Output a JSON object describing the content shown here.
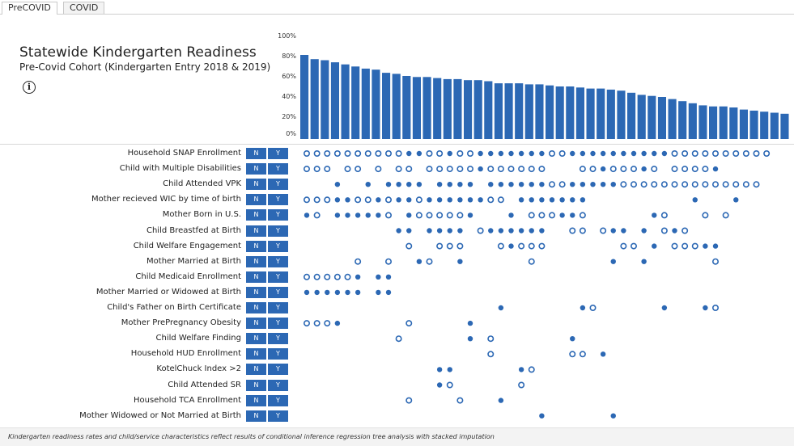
{
  "tabs": [
    {
      "label": "PreCOVID",
      "active": true
    },
    {
      "label": "COVID",
      "active": false
    }
  ],
  "header": {
    "title": "Statewide Kindergarten Readiness",
    "subtitle": "Pre-Covid Cohort (Kindergarten Entry 2018 & 2019)"
  },
  "info_icon": "info-icon",
  "button_labels": {
    "n": "N",
    "y": "Y"
  },
  "colors": {
    "bar": "#2c68b4",
    "dot": "#2c68b4",
    "button": "#2c68b4"
  },
  "chart_data": {
    "type": "bar",
    "ylim": [
      0,
      100
    ],
    "yticks": [
      "100%",
      "80%",
      "60%",
      "40%",
      "20%",
      "0%"
    ],
    "values": [
      80,
      76,
      75,
      73,
      71,
      69,
      67,
      66,
      63,
      62,
      60,
      59,
      59,
      58,
      57,
      57,
      56,
      56,
      55,
      53,
      53,
      53,
      52,
      52,
      51,
      50,
      50,
      49,
      48,
      48,
      47,
      46,
      44,
      42,
      41,
      40,
      38,
      36,
      34,
      32,
      31,
      31,
      30,
      28,
      27,
      26,
      25,
      24
    ],
    "grid": false,
    "legend": "none"
  },
  "rows": [
    {
      "label": "Household SNAP Enrollment",
      "dots": "oooooooooo●●oo●oo●●●●●●●oo●●●●●●●●●●oooooooooo"
    },
    {
      "label": "Child with Multiple Disabilities",
      "dots": "ooo_oo_o_oo_ooooo●oooooo___oo●ooo●o_oooo●"
    },
    {
      "label": "Child Attended VPK",
      "dots": "___●__●_●●●●_●●●●_●●●●●●oo●●●●●oooooooooooooo"
    },
    {
      "label": "Mother recieved WIC by time of birth",
      "dots": "ooo●●oo●o●●o●●●●●●oo_●●●●●●●__________●___●"
    },
    {
      "label": "Mother Born in U.S.",
      "dots": "●o_●●●●●o_●ooooo●___●_ooo●●o______●o___o_o"
    },
    {
      "label": "Child Breastfed at Birth",
      "dots": "_________●●_●●●●_o●●●●●●__oo_o●●_●_o●o"
    },
    {
      "label": "Child Welfare Engagement",
      "dots": "__________o__ooo___o●ooo_______oo_●_ooo●●"
    },
    {
      "label": "Mother Married at Birth",
      "dots": "_____o__o__●o__●______o_______●__●______o"
    },
    {
      "label": "Child Medicaid Enrollment",
      "dots": "ooooo●_●●"
    },
    {
      "label": "Mother Married or Widowed at Birth",
      "dots": "●●●●●●_●●"
    },
    {
      "label": "Child's Father on Birth Certificate",
      "dots": "___________________●_______●o______●___●o"
    },
    {
      "label": "Mother PrePregnancy Obesity",
      "dots": "ooo●______o_____●"
    },
    {
      "label": "Child Welfare Finding",
      "dots": "_________o______●_o_______●"
    },
    {
      "label": "Household HUD Enrollment",
      "dots": "__________________o_______oo_●"
    },
    {
      "label": "KotelChuck Index >2",
      "dots": "_____________●●______●o"
    },
    {
      "label": "Child Attended SR",
      "dots": "_____________●o______o"
    },
    {
      "label": "Household TCA Enrollment",
      "dots": "__________o____o___●"
    },
    {
      "label": "Mother Widowed or Not Married at Birth",
      "dots": "_______________________●______●"
    }
  ],
  "footnote": "Kindergarten readiness rates and child/service characteristics reflect results of conditional inference regression tree analysis with stacked imputation"
}
